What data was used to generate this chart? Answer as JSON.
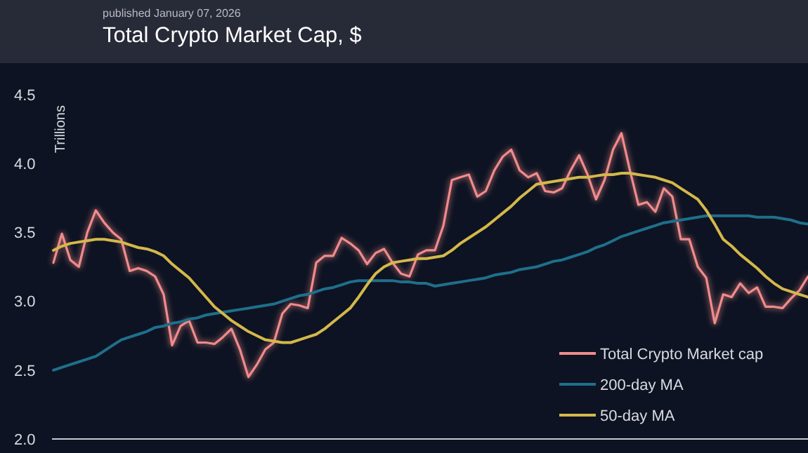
{
  "chart_data": {
    "type": "line",
    "title": "Total Crypto Market Cap, $",
    "subtitle": "published January 07, 2026",
    "ylabel": "Trillions",
    "categories": [
      null,
      null,
      null,
      null,
      null,
      null,
      null,
      null,
      null,
      null,
      null,
      null,
      null,
      null,
      null,
      null,
      null,
      null,
      null,
      null,
      null,
      null,
      null,
      null,
      null,
      null,
      null,
      null,
      null,
      null,
      null,
      null,
      null,
      null,
      null,
      null,
      null,
      null,
      null,
      null,
      null,
      null,
      null,
      null,
      null,
      null,
      null,
      null,
      null,
      null,
      null,
      null,
      null,
      null,
      null,
      null,
      null,
      null,
      null,
      null,
      null,
      null,
      null,
      null,
      null,
      null,
      null,
      null,
      null,
      null,
      null,
      null,
      null,
      null,
      null,
      null,
      null,
      null,
      null,
      null,
      null,
      null,
      null,
      null,
      null,
      null,
      null,
      null,
      null,
      null
    ],
    "series": [
      {
        "name": "Total Crypto Market cap",
        "color": "#f28b8b",
        "values": [
          3.28,
          3.49,
          3.3,
          3.25,
          3.5,
          3.66,
          3.57,
          3.5,
          3.45,
          3.22,
          3.24,
          3.22,
          3.18,
          3.05,
          2.68,
          2.82,
          2.86,
          2.7,
          2.7,
          2.69,
          2.74,
          2.8,
          2.65,
          2.45,
          2.54,
          2.65,
          2.7,
          2.91,
          2.98,
          2.97,
          2.95,
          3.28,
          3.33,
          3.33,
          3.46,
          3.42,
          3.37,
          3.27,
          3.35,
          3.38,
          3.28,
          3.2,
          3.18,
          3.34,
          3.37,
          3.37,
          3.55,
          3.88,
          3.9,
          3.92,
          3.76,
          3.8,
          3.95,
          4.05,
          4.1,
          3.95,
          3.9,
          3.93,
          3.8,
          3.79,
          3.82,
          3.95,
          4.06,
          3.92,
          3.74,
          3.88,
          4.1,
          4.22,
          3.95,
          3.7,
          3.72,
          3.65,
          3.82,
          3.76,
          3.45,
          3.45,
          3.25,
          3.17,
          2.84,
          3.05,
          3.03,
          3.13,
          3.06,
          3.1,
          2.96,
          2.96,
          2.95,
          3.02,
          3.08,
          3.18
        ]
      },
      {
        "name": "200-day MA",
        "color": "#1f6f8b",
        "values": [
          2.5,
          2.52,
          2.54,
          2.56,
          2.58,
          2.6,
          2.64,
          2.68,
          2.72,
          2.74,
          2.76,
          2.78,
          2.81,
          2.82,
          2.84,
          2.85,
          2.87,
          2.88,
          2.9,
          2.91,
          2.92,
          2.93,
          2.94,
          2.95,
          2.96,
          2.97,
          2.98,
          3.0,
          3.02,
          3.04,
          3.05,
          3.07,
          3.09,
          3.1,
          3.12,
          3.14,
          3.15,
          3.15,
          3.15,
          3.15,
          3.15,
          3.14,
          3.14,
          3.13,
          3.13,
          3.11,
          3.12,
          3.13,
          3.14,
          3.15,
          3.16,
          3.17,
          3.19,
          3.2,
          3.21,
          3.23,
          3.24,
          3.25,
          3.27,
          3.29,
          3.3,
          3.32,
          3.34,
          3.36,
          3.39,
          3.41,
          3.44,
          3.47,
          3.49,
          3.51,
          3.53,
          3.55,
          3.57,
          3.58,
          3.59,
          3.6,
          3.61,
          3.62,
          3.62,
          3.62,
          3.62,
          3.62,
          3.62,
          3.61,
          3.61,
          3.61,
          3.6,
          3.59,
          3.57,
          3.56
        ]
      },
      {
        "name": "50-day MA",
        "color": "#d4b84a",
        "values": [
          3.37,
          3.4,
          3.42,
          3.43,
          3.44,
          3.45,
          3.45,
          3.44,
          3.43,
          3.41,
          3.39,
          3.38,
          3.36,
          3.33,
          3.27,
          3.22,
          3.17,
          3.1,
          3.03,
          2.96,
          2.91,
          2.86,
          2.82,
          2.78,
          2.75,
          2.72,
          2.71,
          2.7,
          2.7,
          2.72,
          2.74,
          2.76,
          2.8,
          2.85,
          2.9,
          2.95,
          3.03,
          3.12,
          3.2,
          3.25,
          3.28,
          3.29,
          3.3,
          3.31,
          3.31,
          3.32,
          3.33,
          3.37,
          3.42,
          3.46,
          3.5,
          3.54,
          3.59,
          3.64,
          3.69,
          3.75,
          3.8,
          3.85,
          3.86,
          3.87,
          3.88,
          3.89,
          3.9,
          3.9,
          3.91,
          3.92,
          3.92,
          3.93,
          3.93,
          3.92,
          3.91,
          3.9,
          3.88,
          3.86,
          3.82,
          3.78,
          3.74,
          3.66,
          3.56,
          3.45,
          3.4,
          3.34,
          3.29,
          3.24,
          3.18,
          3.13,
          3.09,
          3.07,
          3.05,
          3.03
        ]
      }
    ],
    "ylim": [
      2.0,
      4.5
    ],
    "yticks": [
      {
        "value": 2.0,
        "label": "2.0"
      },
      {
        "value": 2.5,
        "label": "2.5"
      },
      {
        "value": 3.0,
        "label": "3.0"
      },
      {
        "value": 3.5,
        "label": "3.5"
      },
      {
        "value": 4.0,
        "label": "4.0"
      },
      {
        "value": 4.5,
        "label": "4.5"
      }
    ],
    "tick_labels": "y",
    "grid": false,
    "legend": "bottom right",
    "marker": "none",
    "line_style": "solid"
  }
}
